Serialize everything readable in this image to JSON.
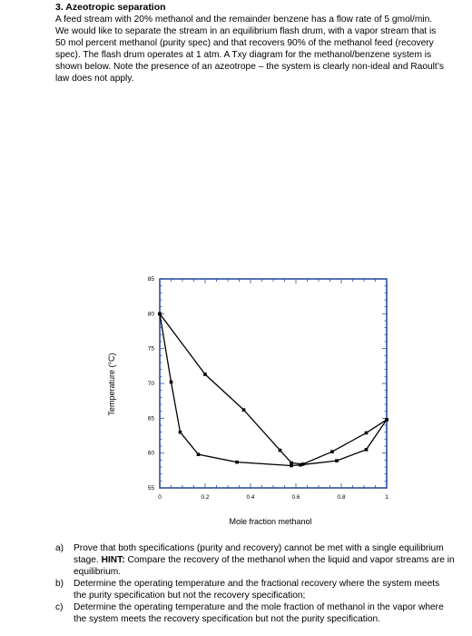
{
  "problem": {
    "heading": "3.  Azeotropic separation",
    "intro_lines": [
      "A feed stream with 20% methanol and the remainder benzene has a flow rate of 5 gmol/min.",
      "We would like to separate the stream in an equilibrium flash drum, with a vapor stream that is",
      "50 mol percent methanol (purity spec) and that recovers 90% of the methanol feed (recovery",
      "spec).  The flash drum operates at 1 atm.  A Txy diagram for the methanol/benzene system is",
      "shown below. Note the presence of an azeotrope – the system is clearly non-ideal and Raoult’s",
      "law does not apply."
    ]
  },
  "chart_data": {
    "type": "line",
    "title": "",
    "xlabel": "Mole fraction methanol",
    "ylabel": "Temperature (°C)",
    "xlim": [
      0,
      1
    ],
    "ylim": [
      55,
      85
    ],
    "x_ticks": [
      "0",
      "0.2",
      "0.4",
      "0.6",
      "0.8",
      "1"
    ],
    "y_ticks": [
      "55",
      "60",
      "65",
      "70",
      "75",
      "80",
      "85"
    ],
    "grid": false,
    "series": [
      {
        "curve": "dew point (vapor)",
        "color": "#000000",
        "x": [
          0.0,
          0.2,
          0.37,
          0.53,
          0.58,
          0.63,
          0.76,
          0.91,
          1.0
        ],
        "y": [
          80.0,
          71.3,
          66.2,
          60.4,
          58.6,
          58.4,
          60.2,
          62.9,
          64.8
        ]
      },
      {
        "curve": "bubble point (liquid)",
        "color": "#000000",
        "x": [
          0.0,
          0.05,
          0.09,
          0.17,
          0.34,
          0.58,
          0.62,
          0.78,
          0.91,
          1.0
        ],
        "y": [
          80.0,
          70.2,
          63.0,
          59.8,
          58.7,
          58.2,
          58.3,
          58.9,
          60.5,
          64.8
        ]
      }
    ]
  },
  "questions": [
    {
      "marker": "a)",
      "text": "Prove that both specifications (purity and recovery) cannot be met with a single equilibrium stage.",
      "hint_label": "HINT:",
      "hint_text": "Compare the recovery of the methanol when the liquid and vapor streams are in equilibrium."
    },
    {
      "marker": "b)",
      "text": "Determine the operating temperature and the fractional recovery where the system meets the purity specification but not the recovery specification;"
    },
    {
      "marker": "c)",
      "text": "Determine the operating temperature and the mole fraction of methanol in the vapor where the system meets the recovery specification but not the purity specification."
    }
  ]
}
